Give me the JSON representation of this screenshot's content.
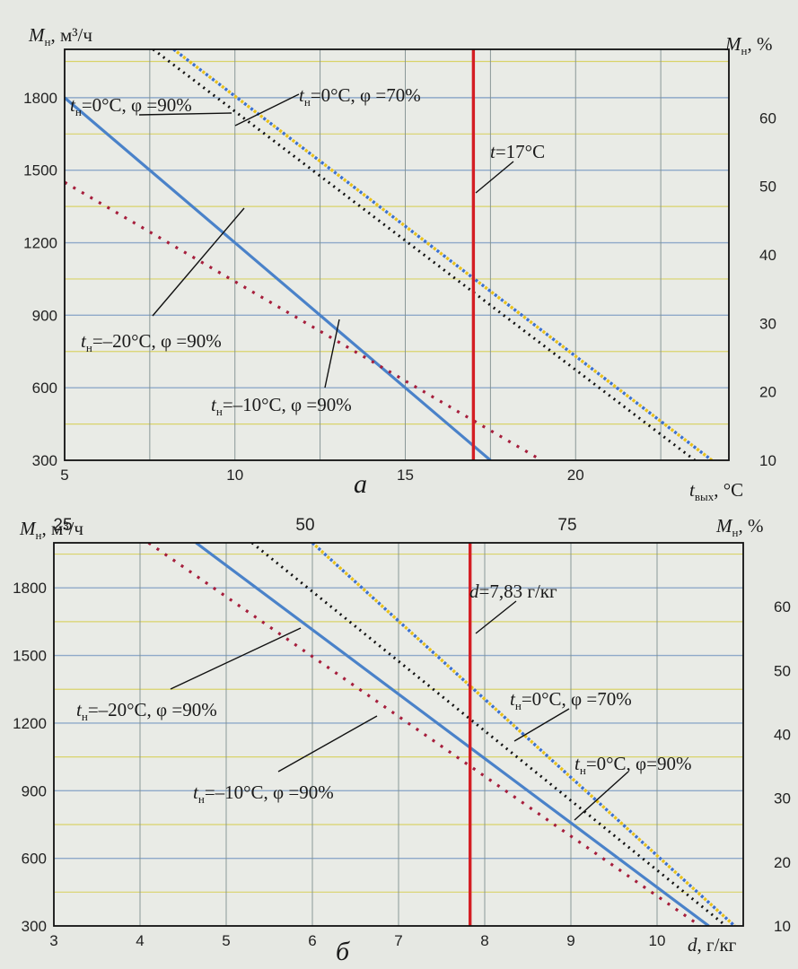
{
  "colors": {
    "blue": "#4a82c9",
    "red_dot": "#a61e3c",
    "black_dot": "#111111",
    "yellow_dot": "#e9c21a",
    "blue_dot": "#3a6fd0",
    "red_line": "#d41e24",
    "grid_h": "#8ea9c9",
    "grid_y": "#d9d36a",
    "grid_v": "#7f8f8f"
  },
  "chart_data": [
    {
      "type": "line",
      "panel_label": "а",
      "x_axis_label": {
        "var": "t",
        "sub": "вых",
        "unit": ", °C"
      },
      "y_left_label": {
        "var": "M",
        "sub": "н",
        "unit": ", м³/ч"
      },
      "y_right_label": {
        "var": "M",
        "sub": "н",
        "unit": ", %"
      },
      "xlim": [
        5,
        24.5
      ],
      "ylim": [
        300,
        2000
      ],
      "y_right_lim": [
        10,
        70
      ],
      "x_ticks": [
        "5",
        "10",
        "15",
        "20"
      ],
      "y_ticks": [
        "300",
        "600",
        "900",
        "1200",
        "1500",
        "1800"
      ],
      "y_right_ticks": [
        "10",
        "20",
        "30",
        "40",
        "50",
        "60"
      ],
      "vline": {
        "x": 17,
        "label": "t=17°С"
      },
      "series": [
        {
          "name": "tн=–20°С, φ=90%",
          "style": "solid",
          "points": [
            [
              5,
              1800
            ],
            [
              17.5,
              300
            ]
          ]
        },
        {
          "name": "tн=–10°С, φ =90%",
          "style": "dotted-red",
          "points": [
            [
              5,
              1450
            ],
            [
              19,
              300
            ]
          ]
        },
        {
          "name": "tн=0°С, φ =90%",
          "style": "dotted-black",
          "points": [
            [
              7.6,
              2000
            ],
            [
              23.5,
              300
            ]
          ]
        },
        {
          "name": "tн=0°С, φ =70%",
          "style": "dotted-yellow",
          "points": [
            [
              8.2,
              2000
            ],
            [
              24,
              300
            ]
          ]
        }
      ],
      "annotations": [
        {
          "var": "t",
          "sub": "н",
          "text": "=0°С, φ =90%"
        },
        {
          "var": "t",
          "sub": "н",
          "text": "=0°С, φ =70%"
        },
        {
          "var": "t",
          "sub": "",
          "text": "=17°С"
        },
        {
          "var": "t",
          "sub": "н",
          "text": "=–20°С, φ =90%"
        },
        {
          "var": "t",
          "sub": "н",
          "text": "=–10°С, φ =90%"
        }
      ]
    },
    {
      "type": "line",
      "panel_label": "б",
      "x_axis_label": {
        "var": "d",
        "unit": ", г/кг"
      },
      "y_left_label": {
        "var": "M",
        "sub": "н",
        "unit": ", м³/ч"
      },
      "y_right_label": {
        "var": "M",
        "sub": "н",
        "unit": ", %"
      },
      "top_axis_ticks": [
        "25",
        "50",
        "75"
      ],
      "xlim": [
        3,
        11
      ],
      "ylim": [
        300,
        2000
      ],
      "y_right_lim": [
        10,
        70
      ],
      "x_ticks": [
        "3",
        "4",
        "5",
        "6",
        "7",
        "8",
        "9",
        "10"
      ],
      "y_ticks": [
        "300",
        "600",
        "900",
        "1200",
        "1500",
        "1800"
      ],
      "y_right_ticks": [
        "10",
        "20",
        "30",
        "40",
        "50",
        "60"
      ],
      "vline": {
        "x": 7.83,
        "label": "d=7,83 г/кг"
      },
      "series": [
        {
          "name": "tн=–20°С, φ =90%",
          "style": "solid",
          "points": [
            [
              4.65,
              2000
            ],
            [
              10.6,
              300
            ]
          ]
        },
        {
          "name": "tн=–10°С, φ =90%",
          "style": "dotted-red",
          "points": [
            [
              4.1,
              2000
            ],
            [
              10.5,
              300
            ]
          ]
        },
        {
          "name": "tн=0°С, φ=90%",
          "style": "dotted-black",
          "points": [
            [
              5.3,
              2000
            ],
            [
              10.8,
              300
            ]
          ]
        },
        {
          "name": "tн=0°С, φ =70%",
          "style": "dotted-yellow",
          "points": [
            [
              6.0,
              2000
            ],
            [
              10.9,
              300
            ]
          ]
        }
      ],
      "annotations": [
        {
          "var": "d",
          "sub": "",
          "text": "=7,83 г/кг"
        },
        {
          "var": "t",
          "sub": "н",
          "text": "=–20°С, φ =90%"
        },
        {
          "var": "t",
          "sub": "н",
          "text": "=0°С, φ =70%"
        },
        {
          "var": "t",
          "sub": "н",
          "text": "=0°С, φ=90%"
        },
        {
          "var": "t",
          "sub": "н",
          "text": "=–10°С, φ =90%"
        }
      ]
    }
  ]
}
